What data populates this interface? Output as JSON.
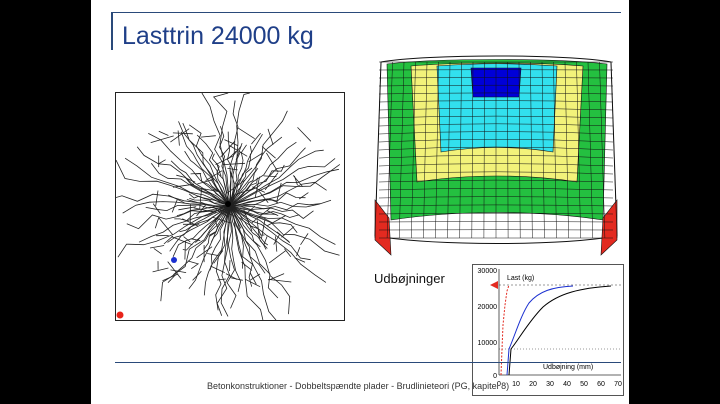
{
  "slide": {
    "title": "Lasttrin 24000 kg",
    "caption": "Udbøjninger",
    "footer": "Betonkonstruktioner - Dobbeltspændte plader - Brudlinieteori (PG, kapitel 8)"
  },
  "graph": {
    "y_axis_label": "Last (kg)",
    "x_axis_label": "Udbøjning (mm)",
    "y_ticks": [
      "30000",
      "20000",
      "10000",
      "0"
    ],
    "x_ticks": [
      "0",
      "10",
      "20",
      "30",
      "40",
      "50",
      "60",
      "70"
    ]
  },
  "colors": {
    "title": "#1f3f88",
    "marker_center": "#000000",
    "marker_mid": "#1a2fd0",
    "marker_corner": "#e8241a",
    "surface_blue": "#0000d8",
    "surface_cyan": "#32e0ee",
    "surface_yellow": "#f2f27a",
    "surface_green": "#24c040",
    "surface_red": "#e32a20"
  }
}
